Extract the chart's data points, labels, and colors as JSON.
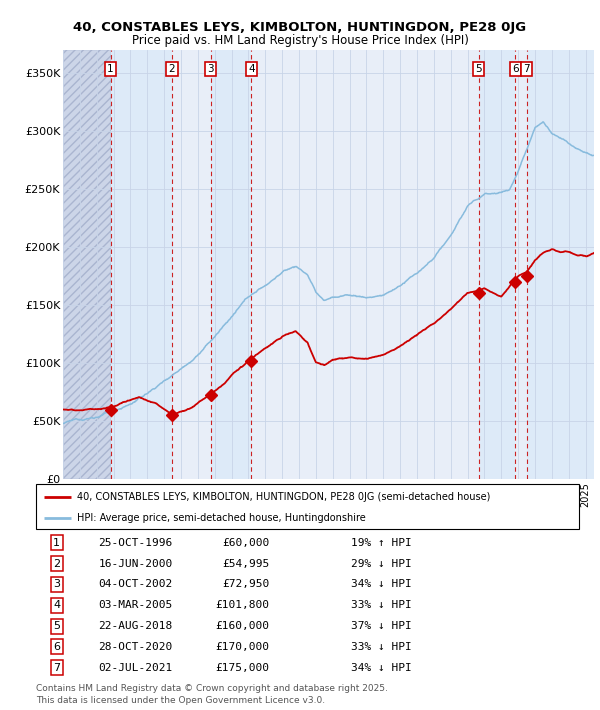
{
  "title_line1": "40, CONSTABLES LEYS, KIMBOLTON, HUNTINGDON, PE28 0JG",
  "title_line2": "Price paid vs. HM Land Registry's House Price Index (HPI)",
  "bg_color": "#e8eef8",
  "hpi_color": "#88bbdd",
  "price_color": "#cc0000",
  "vline_color": "#cc2222",
  "transactions": [
    {
      "num": 1,
      "date_dec": 1996.82,
      "price": 60000,
      "label": "25-OCT-1996",
      "price_str": "£60,000",
      "hpi_rel": "19% ↑ HPI"
    },
    {
      "num": 2,
      "date_dec": 2000.46,
      "price": 54995,
      "label": "16-JUN-2000",
      "price_str": "£54,995",
      "hpi_rel": "29% ↓ HPI"
    },
    {
      "num": 3,
      "date_dec": 2002.76,
      "price": 72950,
      "label": "04-OCT-2002",
      "price_str": "£72,950",
      "hpi_rel": "34% ↓ HPI"
    },
    {
      "num": 4,
      "date_dec": 2005.17,
      "price": 101800,
      "label": "03-MAR-2005",
      "price_str": "£101,800",
      "hpi_rel": "33% ↓ HPI"
    },
    {
      "num": 5,
      "date_dec": 2018.65,
      "price": 160000,
      "label": "22-AUG-2018",
      "price_str": "£160,000",
      "hpi_rel": "37% ↓ HPI"
    },
    {
      "num": 6,
      "date_dec": 2020.83,
      "price": 170000,
      "label": "28-OCT-2020",
      "price_str": "£170,000",
      "hpi_rel": "33% ↓ HPI"
    },
    {
      "num": 7,
      "date_dec": 2021.5,
      "price": 175000,
      "label": "02-JUL-2021",
      "price_str": "£175,000",
      "hpi_rel": "34% ↓ HPI"
    }
  ],
  "xmin": 1994.0,
  "xmax": 2025.5,
  "ymin": 0,
  "ymax": 370000,
  "yticks": [
    0,
    50000,
    100000,
    150000,
    200000,
    250000,
    300000,
    350000
  ],
  "ytick_labels": [
    "£0",
    "£50K",
    "£100K",
    "£150K",
    "£200K",
    "£250K",
    "£300K",
    "£350K"
  ],
  "legend_line1": "40, CONSTABLES LEYS, KIMBOLTON, HUNTINGDON, PE28 0JG (semi-detached house)",
  "legend_line2": "HPI: Average price, semi-detached house, Huntingdonshire",
  "footnote_line1": "Contains HM Land Registry data © Crown copyright and database right 2025.",
  "footnote_line2": "This data is licensed under the Open Government Licence v3.0."
}
